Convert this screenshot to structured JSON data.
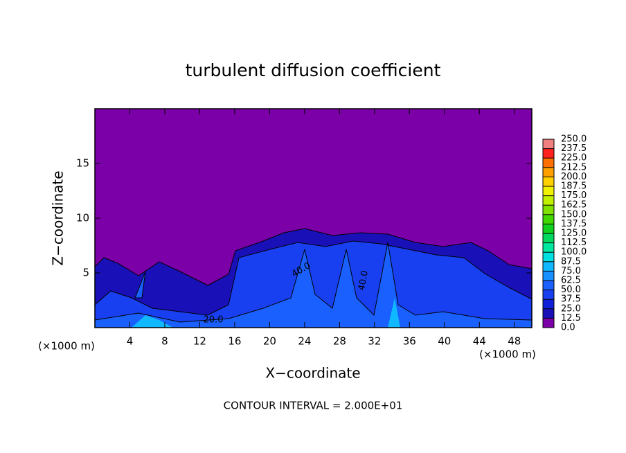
{
  "chart_data": {
    "type": "contour",
    "title": "turbulent diffusion coefficient",
    "x_label": "X−coordinate",
    "y_label": "Z−coordinate",
    "x_unit_left": "(×1000 m)",
    "x_unit_right": "(×1000 m)",
    "footer": "CONTOUR INTERVAL = 2.000E+01",
    "xlim": [
      0,
      50
    ],
    "ylim": [
      0,
      20
    ],
    "xticks": [
      4,
      8,
      12,
      16,
      20,
      24,
      28,
      32,
      36,
      40,
      44,
      48
    ],
    "yticks": [
      5,
      10,
      15
    ],
    "contour_labels": [
      "40.0",
      "20.0",
      "40.0"
    ],
    "colorbar": {
      "ticks": [
        {
          "value": 0,
          "label": "0.0"
        },
        {
          "value": 12.5,
          "label": "12.5"
        },
        {
          "value": 25,
          "label": "25.0"
        },
        {
          "value": 37.5,
          "label": "37.5"
        },
        {
          "value": 50,
          "label": "50.0"
        },
        {
          "value": 62.5,
          "label": "62.5"
        },
        {
          "value": 75,
          "label": "75.0"
        },
        {
          "value": 87.5,
          "label": "87.5"
        },
        {
          "value": 100,
          "label": "100.0"
        },
        {
          "value": 112.5,
          "label": "112.5"
        },
        {
          "value": 125,
          "label": "125.0"
        },
        {
          "value": 137.5,
          "label": "137.5"
        },
        {
          "value": 150,
          "label": "150.0"
        },
        {
          "value": 162.5,
          "label": "162.5"
        },
        {
          "value": 175,
          "label": "175.0"
        },
        {
          "value": 187.5,
          "label": "187.5"
        },
        {
          "value": 200,
          "label": "200.0"
        },
        {
          "value": 212.5,
          "label": "212.5"
        },
        {
          "value": 225,
          "label": "225.0"
        },
        {
          "value": 237.5,
          "label": "237.5"
        },
        {
          "value": 250,
          "label": "250.0"
        }
      ],
      "colors": [
        "#7b00a8",
        "#1a10b8",
        "#1020d8",
        "#1840f0",
        "#1a60ff",
        "#1890ff",
        "#10b8ff",
        "#00e0e0",
        "#00e8a0",
        "#00d860",
        "#10d020",
        "#40d800",
        "#80e000",
        "#c0f000",
        "#f0f000",
        "#ffd000",
        "#ffa000",
        "#ff7000",
        "#ff2020",
        "#f08080"
      ]
    }
  }
}
